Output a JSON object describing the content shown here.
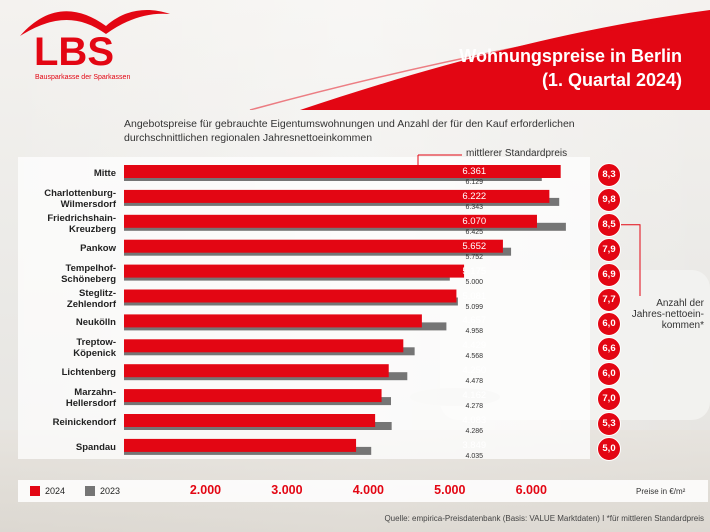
{
  "brand": {
    "logo": "LBS",
    "tagline": "Bausparkasse der Sparkassen"
  },
  "header": {
    "title_line1": "Wohnungspreise in Berlin",
    "title_line2": "(1. Quartal 2024)"
  },
  "subtitle": "Angebotspreise für gebrauchte Eigentumswohnungen und Anzahl der für den Kauf erforderlichen durchschnittlichen regionalen Jahresnettoeinkommen",
  "annotations": {
    "standardprice": "mittlerer Standardpreis",
    "ratio_label": "Anzahl der Jahres-nettoein-kommen*"
  },
  "colors": {
    "brand_red": "#e30613",
    "series_2023": "#757575",
    "text": "#222222"
  },
  "chart_data": {
    "type": "bar",
    "orientation": "horizontal",
    "categories": [
      "Mitte",
      "Charlottenburg-Wilmersdorf",
      "Friedrichshain-Kreuzberg",
      "Pankow",
      "Tempelhof-Schöneberg",
      "Steglitz-Zehlendorf",
      "Neukölln",
      "Treptow-Köpenick",
      "Lichtenberg",
      "Marzahn-Hellersdorf",
      "Reinickendorf",
      "Spandau"
    ],
    "category_lines": [
      [
        "Mitte"
      ],
      [
        "Charlottenburg-",
        "Wilmersdorf"
      ],
      [
        "Friedrichshain-",
        "Kreuzberg"
      ],
      [
        "Pankow"
      ],
      [
        "Tempelhof-",
        "Schöneberg"
      ],
      [
        "Steglitz-",
        "Zehlendorf"
      ],
      [
        "Neukölln"
      ],
      [
        "Treptow-",
        "Köpenick"
      ],
      [
        "Lichtenberg"
      ],
      [
        "Marzahn-",
        "Hellersdorf"
      ],
      [
        "Reinickendorf"
      ],
      [
        "Spandau"
      ]
    ],
    "series": [
      {
        "name": "2024",
        "values": [
          6361,
          6222,
          6070,
          5652,
          5175,
          5081,
          4657,
          4429,
          4250,
          4162,
          4083,
          3849
        ],
        "labels": [
          "6.361",
          "6.222",
          "6.070",
          "5.652",
          "5.175",
          "5.081",
          "4.657",
          "4.429",
          "4.250",
          "4.162",
          "4.083",
          "3.849"
        ]
      },
      {
        "name": "2023",
        "values": [
          6129,
          6343,
          6425,
          5752,
          5000,
          5099,
          4958,
          4568,
          4478,
          4278,
          4286,
          4035
        ],
        "labels": [
          "6.129",
          "6.343",
          "6.425",
          "5.752",
          "5.000",
          "5.099",
          "4.958",
          "4.568",
          "4.478",
          "4.278",
          "4.286",
          "4.035"
        ]
      }
    ],
    "ratios": [
      "8,3",
      "9,8",
      "8,5",
      "7,9",
      "6,9",
      "7,7",
      "6,0",
      "6,6",
      "6,0",
      "7,0",
      "5,3",
      "5,0"
    ],
    "x_ticks": [
      2000,
      3000,
      4000,
      5000,
      6000
    ],
    "x_tick_labels": [
      "2.000",
      "3.000",
      "4.000",
      "5.000",
      "6.000"
    ],
    "xlabel": "Preise in €/m²",
    "xlim": [
      1000,
      6500
    ],
    "legend_position": "bottom-left"
  },
  "legend": {
    "label_2024": "2024",
    "label_2023": "2023"
  },
  "source": "Quelle: empirica-Preisdatenbank (Basis: VALUE Marktdaten)   I   *für mittleren Standardpreis"
}
